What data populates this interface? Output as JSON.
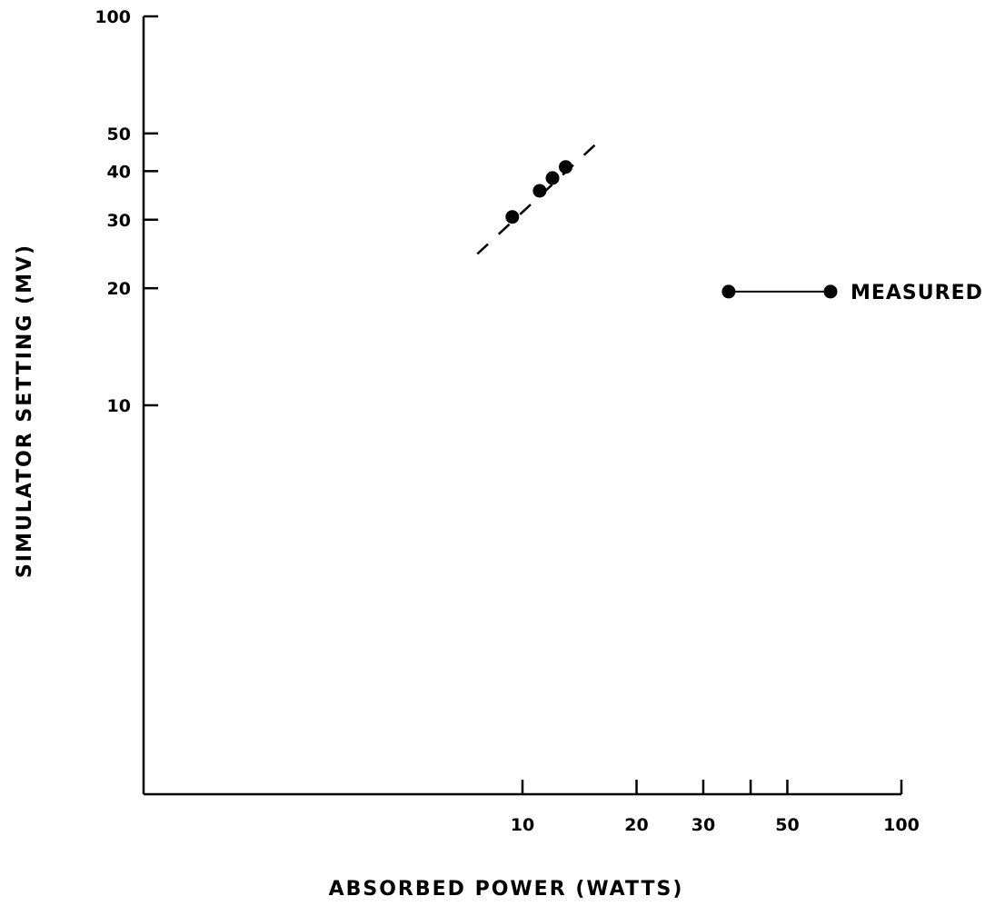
{
  "chart_data": {
    "type": "scatter",
    "xlabel": "ABSORBED POWER (WATTS)",
    "ylabel": "SIMULATOR SETTING (MV)",
    "x_scale": "log",
    "y_scale": "log",
    "xlim": [
      1,
      100
    ],
    "ylim": [
      1,
      100
    ],
    "x_ticks": [
      10,
      20,
      30,
      40,
      50,
      100
    ],
    "x_tick_labels": [
      "10",
      "20",
      "30",
      "",
      "50",
      "100"
    ],
    "y_ticks": [
      10,
      20,
      30,
      40,
      50,
      100
    ],
    "y_tick_labels": [
      "10",
      "20",
      "30",
      "40",
      "50",
      "100"
    ],
    "grid": false,
    "series": [
      {
        "name": "MEASURED",
        "x": [
          9.4,
          11.1,
          12.0,
          13.0
        ],
        "y": [
          30.5,
          35.6,
          38.4,
          41.0
        ]
      }
    ],
    "trend_line": {
      "style": "dashed",
      "x": [
        7.6,
        16.2
      ],
      "y": [
        24.5,
        48.5
      ]
    },
    "legend": {
      "label": "MEASURED",
      "position": "right",
      "marker_x": [
        35,
        65
      ],
      "marker_y": [
        19.6,
        19.6
      ]
    }
  }
}
